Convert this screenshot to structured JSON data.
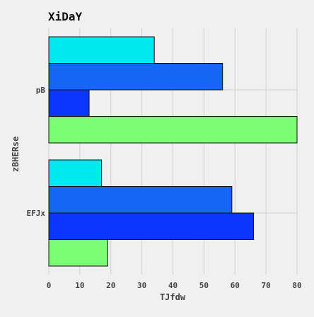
{
  "chart_data": {
    "type": "bar",
    "orientation": "horizontal",
    "title": "XiDaY",
    "xlabel": "TJfdw",
    "ylabel": "zBHERse",
    "categories": [
      "pB",
      "EFJx"
    ],
    "series": [
      {
        "values": [
          34,
          17
        ],
        "color": "#00e8f0"
      },
      {
        "values": [
          56,
          59
        ],
        "color": "#1566f5"
      },
      {
        "values": [
          13,
          66
        ],
        "color": "#0b36ff"
      },
      {
        "values": [
          80,
          19
        ],
        "color": "#7cfc73"
      }
    ],
    "xlim": [
      0,
      80
    ],
    "xticks": [
      0,
      10,
      20,
      30,
      40,
      50,
      60,
      70,
      80
    ],
    "grid": true,
    "legend": "none"
  }
}
